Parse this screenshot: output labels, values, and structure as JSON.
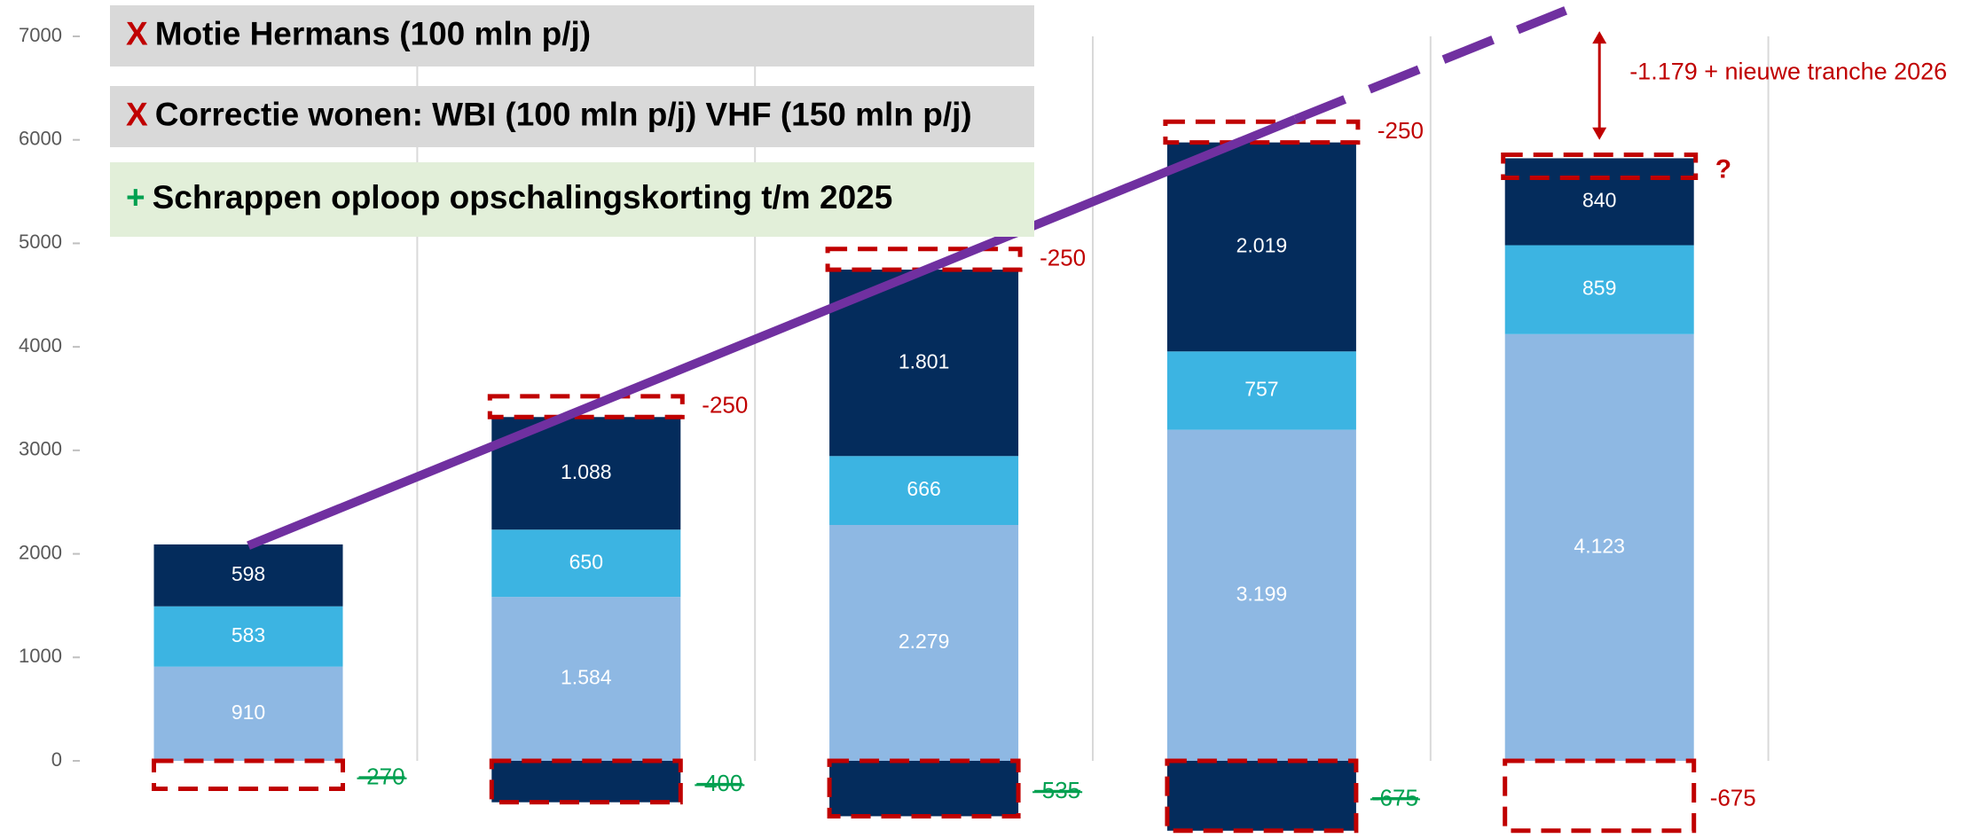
{
  "chart_data": {
    "type": "bar",
    "stacked": true,
    "series": [
      {
        "color": "#8eb8e3",
        "values": [
          910,
          1584,
          2279,
          3199,
          4123
        ],
        "value_labels": [
          "910",
          "1.584",
          "2.279",
          "3.199",
          "4.123"
        ]
      },
      {
        "color": "#3cb4e2",
        "values": [
          583,
          650,
          666,
          757,
          859
        ],
        "value_labels": [
          "583",
          "650",
          "666",
          "757",
          "859"
        ]
      },
      {
        "color": "#042c5c",
        "values": [
          598,
          1088,
          1801,
          2019,
          840
        ],
        "value_labels": [
          "598",
          "1.088",
          "1.801",
          "2.019",
          "840"
        ]
      }
    ],
    "ylim": [
      0,
      7000
    ],
    "yticks": [
      0,
      1000,
      2000,
      3000,
      4000,
      5000,
      6000,
      7000
    ],
    "grid": "vertical",
    "bottom_adjustments": {
      "values": [
        -270,
        -400,
        -535,
        -675,
        -675
      ],
      "filled": [
        false,
        true,
        true,
        true,
        false
      ],
      "struck": [
        true,
        true,
        true,
        true,
        false
      ]
    },
    "top_adjustments": {
      "values": [
        null,
        -250,
        -250,
        -250,
        null
      ]
    },
    "question": {
      "column": 4,
      "label": "?"
    },
    "trend": {
      "color": "#7030a0",
      "x": [
        0,
        3.1
      ],
      "values": [
        2080,
        6200
      ]
    },
    "trend_dashed": {
      "color": "#7030a0",
      "x": [
        3.1,
        3.9
      ],
      "values": [
        6200,
        7250
      ]
    },
    "arrow": {
      "column": 4,
      "from": 7050,
      "to": 6000,
      "label": "-1.179 + nieuwe tranche 2026"
    },
    "annotations": [
      {
        "mark": "X",
        "text": "Motie Hermans (100 mln p/j)"
      },
      {
        "mark": "X",
        "text": "Correctie wonen: WBI (100 mln p/j) VHF (150 mln p/j)"
      },
      {
        "mark": "+",
        "text": "Schrappen oploop opschalingskorting t/m 2025"
      }
    ]
  }
}
